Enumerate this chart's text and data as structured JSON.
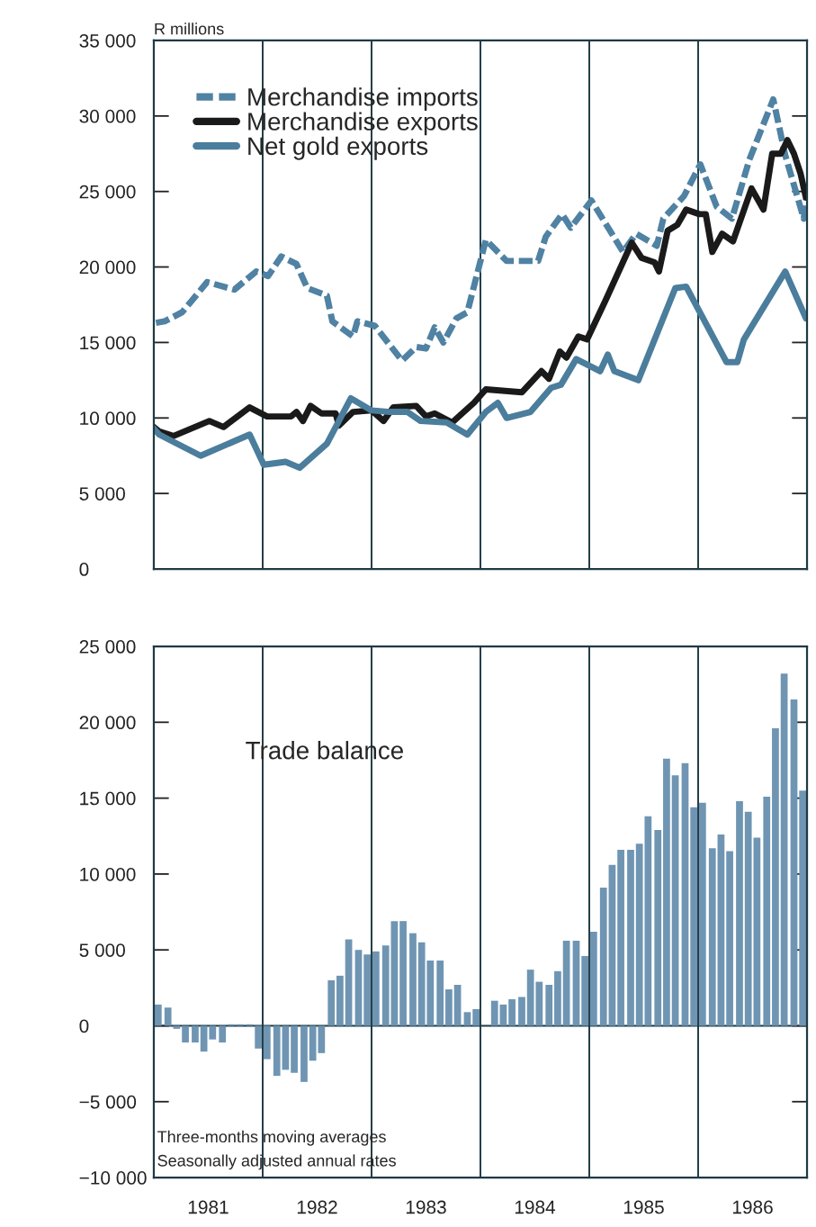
{
  "chart_data": [
    {
      "type": "line",
      "ylabel": "R millions",
      "xlim": [
        1981,
        1987
      ],
      "ylim": [
        0,
        35000
      ],
      "yticks": [
        0,
        {
          "value": 5000,
          "label": "5 000"
        },
        {
          "value": 10000,
          "label": "10 000"
        },
        {
          "value": 15000,
          "label": "15 000"
        },
        {
          "value": 20000,
          "label": "20 000"
        },
        {
          "value": 25000,
          "label": "25 000"
        },
        {
          "value": 30000,
          "label": "30 000"
        },
        {
          "value": 35000,
          "label": "35 000"
        }
      ],
      "tick_labels": "y",
      "grid": false,
      "legend": "top left",
      "ref_lines": [
        {
          "axis": "x",
          "value": 1982,
          "color": "#1f3a44"
        },
        {
          "axis": "x",
          "value": 1983,
          "color": "#1f3a44"
        },
        {
          "axis": "x",
          "value": 1984,
          "color": "#1f3a44"
        },
        {
          "axis": "x",
          "value": 1985,
          "color": "#1f3a44"
        },
        {
          "axis": "x",
          "value": 1986,
          "color": "#1f3a44"
        }
      ],
      "series": [
        {
          "name": "Merchandise imports",
          "color": "#4f82a3",
          "line_style": "dashed",
          "x": [
            1981.02,
            1981.1,
            1981.26,
            1981.49,
            1981.74,
            1981.94,
            1982.05,
            1982.17,
            1982.31,
            1982.41,
            1982.59,
            1982.64,
            1982.83,
            1982.87,
            1983.03,
            1983.28,
            1983.41,
            1983.5,
            1983.58,
            1983.66,
            1983.78,
            1983.88,
            1984.05,
            1984.24,
            1984.53,
            1984.6,
            1984.75,
            1984.83,
            1985.02,
            1985.31,
            1985.43,
            1985.62,
            1985.68,
            1985.87,
            1986.02,
            1986.17,
            1986.31,
            1986.47,
            1986.69,
            1986.8,
            1986.97,
            1986.99
          ],
          "values": [
            16300,
            16400,
            17000,
            19000,
            18500,
            19700,
            19400,
            20700,
            20200,
            18600,
            18100,
            16400,
            15400,
            16400,
            16100,
            13800,
            14700,
            14600,
            16000,
            15000,
            16600,
            17000,
            21800,
            20400,
            20400,
            22000,
            23500,
            22600,
            24400,
            21000,
            22200,
            21400,
            23200,
            24700,
            26800,
            24000,
            23200,
            27100,
            31100,
            27400,
            23200,
            24500
          ]
        },
        {
          "name": "Merchandise exports",
          "color": "#1a1a1a",
          "line_style": "solid",
          "x": [
            1981.0,
            1981.05,
            1981.18,
            1981.51,
            1981.64,
            1981.88,
            1982.04,
            1982.26,
            1982.31,
            1982.37,
            1982.44,
            1982.54,
            1982.67,
            1982.7,
            1982.83,
            1983.0,
            1983.11,
            1983.2,
            1983.41,
            1983.5,
            1983.58,
            1983.74,
            1983.94,
            1984.05,
            1984.38,
            1984.56,
            1984.63,
            1984.73,
            1984.79,
            1984.9,
            1984.98,
            1985.15,
            1985.39,
            1985.48,
            1985.6,
            1985.64,
            1985.72,
            1985.81,
            1985.89,
            1986.01,
            1986.07,
            1986.13,
            1986.22,
            1986.32,
            1986.49,
            1986.6,
            1986.68,
            1986.76,
            1986.82,
            1986.88,
            1986.94,
            1986.99
          ],
          "values": [
            9400,
            9100,
            8800,
            9800,
            9400,
            10700,
            10100,
            10100,
            10400,
            9800,
            10800,
            10300,
            10300,
            9500,
            10400,
            10500,
            9800,
            10700,
            10800,
            10100,
            10300,
            9700,
            11000,
            11900,
            11700,
            13100,
            12600,
            14400,
            14000,
            15400,
            15200,
            17800,
            21600,
            20600,
            20300,
            19700,
            22400,
            22800,
            23800,
            23500,
            23500,
            21000,
            22200,
            21700,
            25200,
            23800,
            27500,
            27500,
            28400,
            27500,
            26200,
            24600
          ]
        },
        {
          "name": "Net gold exports",
          "color": "#4b7d9c",
          "line_style": "solid",
          "x": [
            1981.0,
            1981.05,
            1981.43,
            1981.88,
            1982.01,
            1982.21,
            1982.34,
            1982.59,
            1982.7,
            1982.81,
            1983.0,
            1983.17,
            1983.33,
            1983.45,
            1983.69,
            1983.88,
            1984.05,
            1984.16,
            1984.24,
            1984.46,
            1984.65,
            1984.74,
            1984.88,
            1985.1,
            1985.17,
            1985.23,
            1985.45,
            1985.79,
            1985.89,
            1986.26,
            1986.36,
            1986.42,
            1986.8,
            1986.99
          ],
          "values": [
            9300,
            8900,
            7500,
            8900,
            6900,
            7100,
            6700,
            8300,
            9800,
            11300,
            10500,
            10400,
            10400,
            9800,
            9700,
            8900,
            10400,
            11000,
            10000,
            10400,
            12000,
            12200,
            13900,
            13100,
            14200,
            13100,
            12500,
            18600,
            18700,
            13700,
            13700,
            15200,
            19700,
            16600
          ]
        }
      ]
    },
    {
      "type": "bar",
      "title": "Trade balance",
      "annotations": [
        "Three-months moving averages",
        "Seasonally adjusted annual rates"
      ],
      "xlim": [
        1981,
        1987
      ],
      "xticks": [
        {
          "value": 1981.5,
          "label": "1981"
        },
        {
          "value": 1982.5,
          "label": "1982"
        },
        {
          "value": 1983.5,
          "label": "1983"
        },
        {
          "value": 1984.5,
          "label": "1984"
        },
        {
          "value": 1985.5,
          "label": "1985"
        },
        {
          "value": 1986.5,
          "label": "1986"
        }
      ],
      "ylim": [
        -10000,
        25000
      ],
      "yticks": [
        {
          "value": -10000,
          "label": "−10 000"
        },
        {
          "value": -5000,
          "label": "−5 000"
        },
        0,
        {
          "value": 5000,
          "label": "5 000"
        },
        {
          "value": 10000,
          "label": "10 000"
        },
        {
          "value": 15000,
          "label": "15 000"
        },
        {
          "value": 20000,
          "label": "20 000"
        },
        {
          "value": 25000,
          "label": "25 000"
        }
      ],
      "grid": false,
      "ref_lines": [
        {
          "axis": "x",
          "value": 1982,
          "color": "#1f3a44"
        },
        {
          "axis": "x",
          "value": 1983,
          "color": "#1f3a44"
        },
        {
          "axis": "x",
          "value": 1984,
          "color": "#1f3a44"
        },
        {
          "axis": "x",
          "value": 1985,
          "color": "#1f3a44"
        },
        {
          "axis": "x",
          "value": 1986,
          "color": "#1f3a44"
        },
        {
          "axis": "y",
          "value": 0,
          "color": "#1f3a44"
        }
      ],
      "series": [
        {
          "color": "#6f95b3",
          "x": [
            1981.04,
            1981.13,
            1981.21,
            1981.29,
            1981.38,
            1981.46,
            1981.54,
            1981.63,
            1981.71,
            1981.79,
            1981.88,
            1981.96,
            1982.04,
            1982.13,
            1982.21,
            1982.29,
            1982.38,
            1982.46,
            1982.54,
            1982.63,
            1982.71,
            1982.79,
            1982.88,
            1982.96,
            1983.04,
            1983.13,
            1983.21,
            1983.29,
            1983.38,
            1983.46,
            1983.54,
            1983.63,
            1983.71,
            1983.79,
            1983.88,
            1983.96,
            1984.04,
            1984.13,
            1984.21,
            1984.29,
            1984.38,
            1984.46,
            1984.54,
            1984.63,
            1984.71,
            1984.79,
            1984.88,
            1984.96,
            1985.04,
            1985.13,
            1985.21,
            1985.29,
            1985.38,
            1985.46,
            1985.54,
            1985.63,
            1985.71,
            1985.79,
            1985.88,
            1985.96,
            1986.04,
            1986.13,
            1986.21,
            1986.29,
            1986.38,
            1986.46,
            1986.54,
            1986.63,
            1986.71,
            1986.79,
            1986.88,
            1986.96
          ],
          "values": [
            1400,
            1200,
            -200,
            -1100,
            -1100,
            -1700,
            -900,
            -1100,
            100,
            100,
            100,
            -1500,
            -2200,
            -3300,
            -2900,
            -3100,
            -3700,
            -2300,
            -1800,
            3000,
            3300,
            5700,
            5000,
            4700,
            4900,
            5300,
            6900,
            6900,
            6100,
            5500,
            4300,
            4300,
            2400,
            2700,
            900,
            1100,
            null,
            1650,
            1400,
            1750,
            1900,
            3700,
            2900,
            2700,
            3600,
            5600,
            5600,
            4600,
            6200,
            9100,
            10600,
            11600,
            11600,
            12000,
            13800,
            12900,
            17600,
            16500,
            17300,
            14400,
            14700,
            11700,
            12600,
            11500,
            14800,
            14100,
            12400,
            15100,
            19600,
            23200,
            21500,
            15500
          ]
        }
      ]
    }
  ]
}
